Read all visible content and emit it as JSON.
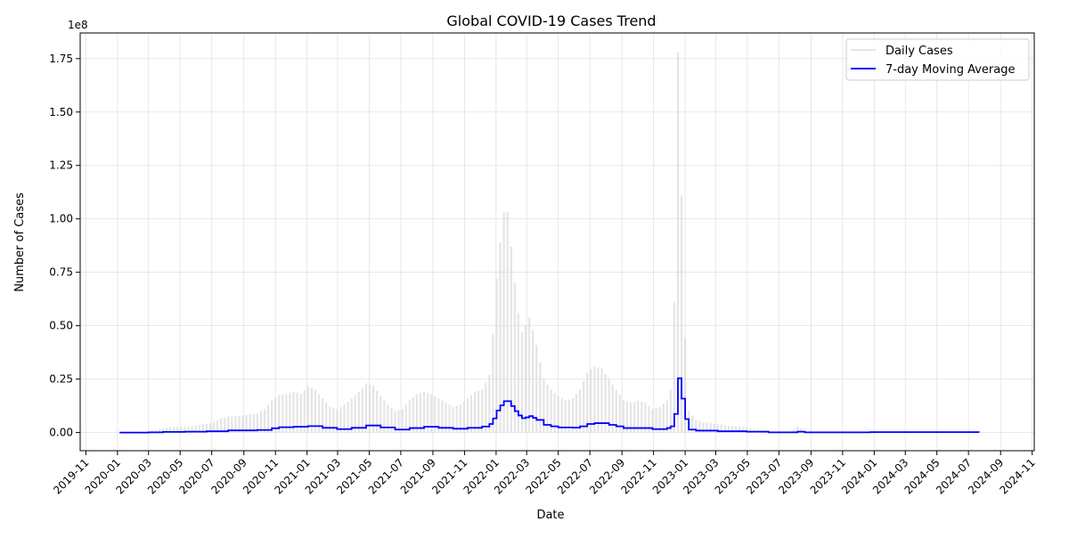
{
  "chart_data": {
    "type": "line",
    "title": "Global COVID-19 Cases Trend",
    "xlabel": "Date",
    "ylabel": "Number of Cases",
    "y_offset_label": "1e8",
    "x_range": [
      "2019-10-21",
      "2024-11-05"
    ],
    "ylim": [
      -0.085,
      1.87
    ],
    "y_ticks": [
      0.0,
      0.25,
      0.5,
      0.75,
      1.0,
      1.25,
      1.5,
      1.75
    ],
    "y_tick_labels": [
      "0.00",
      "0.25",
      "0.50",
      "0.75",
      "1.00",
      "1.25",
      "1.50",
      "1.75"
    ],
    "x_ticks": [
      "2019-11-01",
      "2020-01-01",
      "2020-03-01",
      "2020-05-01",
      "2020-07-01",
      "2020-09-01",
      "2020-11-01",
      "2021-01-01",
      "2021-03-01",
      "2021-05-01",
      "2021-07-01",
      "2021-09-01",
      "2021-11-01",
      "2022-01-01",
      "2022-03-01",
      "2022-05-01",
      "2022-07-01",
      "2022-09-01",
      "2022-11-01",
      "2023-01-01",
      "2023-03-01",
      "2023-05-01",
      "2023-07-01",
      "2023-09-01",
      "2023-11-01",
      "2024-01-01",
      "2024-03-01",
      "2024-05-01",
      "2024-07-01",
      "2024-09-01",
      "2024-11-01"
    ],
    "x_tick_labels": [
      "2019-11",
      "2020-01",
      "2020-03",
      "2020-05",
      "2020-07",
      "2020-09",
      "2020-11",
      "2021-01",
      "2021-03",
      "2021-05",
      "2021-07",
      "2021-09",
      "2021-11",
      "2022-01",
      "2022-03",
      "2022-05",
      "2022-07",
      "2022-09",
      "2022-11",
      "2023-01",
      "2023-03",
      "2023-05",
      "2023-07",
      "2023-09",
      "2023-11",
      "2024-01",
      "2024-03",
      "2024-05",
      "2024-07",
      "2024-09",
      "2024-11"
    ],
    "grid": true,
    "legend": "upper right",
    "series": [
      {
        "name": "Daily Cases",
        "color": "#d3d3d3",
        "style": "thin-bars",
        "points": [
          [
            "2020-01-05",
            0.0
          ],
          [
            "2020-01-19",
            0.0
          ],
          [
            "2020-02-02",
            0.002
          ],
          [
            "2020-02-16",
            0.003
          ],
          [
            "2020-03-01",
            0.005
          ],
          [
            "2020-03-15",
            0.01
          ],
          [
            "2020-03-29",
            0.02
          ],
          [
            "2020-04-12",
            0.025
          ],
          [
            "2020-04-26",
            0.027
          ],
          [
            "2020-05-10",
            0.028
          ],
          [
            "2020-05-24",
            0.03
          ],
          [
            "2020-06-07",
            0.035
          ],
          [
            "2020-06-21",
            0.04
          ],
          [
            "2020-07-05",
            0.05
          ],
          [
            "2020-07-19",
            0.065
          ],
          [
            "2020-08-02",
            0.075
          ],
          [
            "2020-08-16",
            0.078
          ],
          [
            "2020-08-30",
            0.08
          ],
          [
            "2020-09-13",
            0.085
          ],
          [
            "2020-09-27",
            0.09
          ],
          [
            "2020-10-11",
            0.11
          ],
          [
            "2020-10-25",
            0.15
          ],
          [
            "2020-11-08",
            0.175
          ],
          [
            "2020-11-22",
            0.18
          ],
          [
            "2020-12-06",
            0.19
          ],
          [
            "2020-12-20",
            0.18
          ],
          [
            "2021-01-03",
            0.22
          ],
          [
            "2021-01-17",
            0.2
          ],
          [
            "2021-01-31",
            0.16
          ],
          [
            "2021-02-14",
            0.12
          ],
          [
            "2021-02-28",
            0.11
          ],
          [
            "2021-03-14",
            0.13
          ],
          [
            "2021-03-28",
            0.16
          ],
          [
            "2021-04-11",
            0.19
          ],
          [
            "2021-04-25",
            0.23
          ],
          [
            "2021-05-09",
            0.22
          ],
          [
            "2021-05-23",
            0.17
          ],
          [
            "2021-06-06",
            0.13
          ],
          [
            "2021-06-20",
            0.1
          ],
          [
            "2021-07-04",
            0.11
          ],
          [
            "2021-07-18",
            0.15
          ],
          [
            "2021-08-01",
            0.18
          ],
          [
            "2021-08-15",
            0.19
          ],
          [
            "2021-08-29",
            0.18
          ],
          [
            "2021-09-12",
            0.16
          ],
          [
            "2021-09-26",
            0.14
          ],
          [
            "2021-10-10",
            0.12
          ],
          [
            "2021-10-24",
            0.13
          ],
          [
            "2021-11-07",
            0.16
          ],
          [
            "2021-11-21",
            0.19
          ],
          [
            "2021-12-05",
            0.2
          ],
          [
            "2021-12-19",
            0.27
          ],
          [
            "2021-12-26",
            0.46
          ],
          [
            "2022-01-02",
            0.72
          ],
          [
            "2022-01-09",
            0.89
          ],
          [
            "2022-01-16",
            1.03
          ],
          [
            "2022-01-23",
            1.03
          ],
          [
            "2022-01-30",
            0.87
          ],
          [
            "2022-02-06",
            0.7
          ],
          [
            "2022-02-13",
            0.56
          ],
          [
            "2022-02-20",
            0.47
          ],
          [
            "2022-02-27",
            0.5
          ],
          [
            "2022-03-06",
            0.54
          ],
          [
            "2022-03-13",
            0.48
          ],
          [
            "2022-03-20",
            0.41
          ],
          [
            "2022-04-03",
            0.25
          ],
          [
            "2022-04-17",
            0.2
          ],
          [
            "2022-05-01",
            0.17
          ],
          [
            "2022-05-15",
            0.15
          ],
          [
            "2022-05-29",
            0.16
          ],
          [
            "2022-06-12",
            0.2
          ],
          [
            "2022-06-26",
            0.28
          ],
          [
            "2022-07-10",
            0.31
          ],
          [
            "2022-07-24",
            0.3
          ],
          [
            "2022-08-07",
            0.25
          ],
          [
            "2022-08-21",
            0.2
          ],
          [
            "2022-09-04",
            0.15
          ],
          [
            "2022-09-18",
            0.14
          ],
          [
            "2022-10-02",
            0.15
          ],
          [
            "2022-10-16",
            0.14
          ],
          [
            "2022-10-30",
            0.11
          ],
          [
            "2022-11-13",
            0.12
          ],
          [
            "2022-11-27",
            0.15
          ],
          [
            "2022-12-04",
            0.2
          ],
          [
            "2022-12-11",
            0.61
          ],
          [
            "2022-12-18",
            1.78
          ],
          [
            "2022-12-25",
            1.11
          ],
          [
            "2023-01-01",
            0.44
          ],
          [
            "2023-01-08",
            0.1
          ],
          [
            "2023-01-22",
            0.06
          ],
          [
            "2023-02-05",
            0.05
          ],
          [
            "2023-02-19",
            0.045
          ],
          [
            "2023-03-05",
            0.04
          ],
          [
            "2023-03-19",
            0.035
          ],
          [
            "2023-04-02",
            0.03
          ],
          [
            "2023-04-16",
            0.028
          ],
          [
            "2023-04-30",
            0.025
          ],
          [
            "2023-05-14",
            0.015
          ],
          [
            "2023-05-28",
            0.01
          ],
          [
            "2023-06-11",
            0.008
          ],
          [
            "2023-06-25",
            0.005
          ],
          [
            "2023-07-09",
            0.004
          ],
          [
            "2023-07-23",
            0.003
          ],
          [
            "2023-08-06",
            0.03
          ],
          [
            "2023-08-20",
            0.005
          ],
          [
            "2023-09-03",
            0.003
          ],
          [
            "2023-09-17",
            0.002
          ],
          [
            "2023-10-01",
            0.002
          ],
          [
            "2023-10-29",
            0.002
          ],
          [
            "2023-11-26",
            0.002
          ],
          [
            "2023-12-24",
            0.001
          ],
          [
            "2024-02-18",
            0.001
          ],
          [
            "2024-04-14",
            0.001
          ],
          [
            "2024-06-09",
            0.001
          ],
          [
            "2024-07-21",
            0.0
          ]
        ]
      },
      {
        "name": "7-day Moving Average",
        "color": "#0000ff",
        "style": "step",
        "points": [
          [
            "2020-01-05",
            0.0
          ],
          [
            "2020-03-01",
            0.001
          ],
          [
            "2020-03-29",
            0.003
          ],
          [
            "2020-05-10",
            0.004
          ],
          [
            "2020-06-21",
            0.006
          ],
          [
            "2020-08-02",
            0.01
          ],
          [
            "2020-09-27",
            0.012
          ],
          [
            "2020-10-25",
            0.02
          ],
          [
            "2020-11-08",
            0.025
          ],
          [
            "2020-12-06",
            0.027
          ],
          [
            "2021-01-03",
            0.03
          ],
          [
            "2021-01-31",
            0.022
          ],
          [
            "2021-02-28",
            0.016
          ],
          [
            "2021-03-28",
            0.022
          ],
          [
            "2021-04-25",
            0.033
          ],
          [
            "2021-05-23",
            0.024
          ],
          [
            "2021-06-20",
            0.014
          ],
          [
            "2021-07-18",
            0.021
          ],
          [
            "2021-08-15",
            0.027
          ],
          [
            "2021-09-12",
            0.022
          ],
          [
            "2021-10-10",
            0.018
          ],
          [
            "2021-11-07",
            0.022
          ],
          [
            "2021-12-05",
            0.028
          ],
          [
            "2021-12-19",
            0.04
          ],
          [
            "2021-12-26",
            0.066
          ],
          [
            "2022-01-02",
            0.103
          ],
          [
            "2022-01-09",
            0.127
          ],
          [
            "2022-01-16",
            0.147
          ],
          [
            "2022-01-23",
            0.147
          ],
          [
            "2022-01-30",
            0.124
          ],
          [
            "2022-02-06",
            0.1
          ],
          [
            "2022-02-13",
            0.08
          ],
          [
            "2022-02-20",
            0.067
          ],
          [
            "2022-02-27",
            0.071
          ],
          [
            "2022-03-06",
            0.077
          ],
          [
            "2022-03-13",
            0.069
          ],
          [
            "2022-03-20",
            0.059
          ],
          [
            "2022-04-03",
            0.036
          ],
          [
            "2022-04-17",
            0.029
          ],
          [
            "2022-05-01",
            0.024
          ],
          [
            "2022-05-29",
            0.023
          ],
          [
            "2022-06-12",
            0.029
          ],
          [
            "2022-06-26",
            0.04
          ],
          [
            "2022-07-10",
            0.044
          ],
          [
            "2022-08-07",
            0.036
          ],
          [
            "2022-08-21",
            0.029
          ],
          [
            "2022-09-04",
            0.021
          ],
          [
            "2022-10-02",
            0.021
          ],
          [
            "2022-10-30",
            0.016
          ],
          [
            "2022-11-27",
            0.021
          ],
          [
            "2022-12-04",
            0.029
          ],
          [
            "2022-12-11",
            0.087
          ],
          [
            "2022-12-18",
            0.254
          ],
          [
            "2022-12-25",
            0.159
          ],
          [
            "2023-01-01",
            0.063
          ],
          [
            "2023-01-08",
            0.014
          ],
          [
            "2023-01-22",
            0.009
          ],
          [
            "2023-03-05",
            0.006
          ],
          [
            "2023-04-30",
            0.004
          ],
          [
            "2023-06-11",
            0.001
          ],
          [
            "2023-07-23",
            0.001
          ],
          [
            "2023-08-06",
            0.004
          ],
          [
            "2023-08-20",
            0.001
          ],
          [
            "2023-09-17",
            0.001
          ],
          [
            "2023-12-24",
            0.002
          ],
          [
            "2024-07-21",
            0.0
          ]
        ]
      }
    ]
  }
}
